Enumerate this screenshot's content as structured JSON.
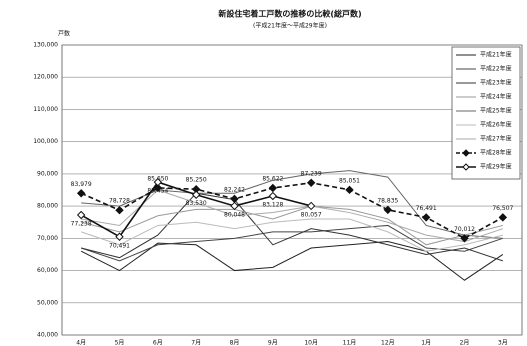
{
  "chart_data": {
    "type": "line",
    "title": "新設住宅着工戸数の推移の比較(総戸数)",
    "subtitle": "(平成21年度～平成29年度)",
    "y_label": "戸数",
    "categories": [
      "4月",
      "5月",
      "6月",
      "7月",
      "8月",
      "9月",
      "10月",
      "11月",
      "12月",
      "1月",
      "2月",
      "3月"
    ],
    "ylim": [
      40000,
      130000
    ],
    "yticks": [
      {
        "value": 40000,
        "label": "40,000"
      },
      {
        "value": 50000,
        "label": "50,000"
      },
      {
        "value": 60000,
        "label": "60,000"
      },
      {
        "value": 70000,
        "label": "70,000"
      },
      {
        "value": 80000,
        "label": "80,000"
      },
      {
        "value": 90000,
        "label": "90,000"
      },
      {
        "value": 100000,
        "label": "100,000"
      },
      {
        "value": 110000,
        "label": "110,000"
      },
      {
        "value": 120000,
        "label": "120,000"
      },
      {
        "value": 130000,
        "label": "130,000"
      }
    ],
    "grid": true,
    "legend": "upper right",
    "series": [
      {
        "name": "平成21年度",
        "color": "#222222",
        "values": [
          66000,
          60000,
          68500,
          68000,
          60000,
          61000,
          67000,
          68000,
          69000,
          66000,
          57000,
          65000
        ]
      },
      {
        "name": "平成22年度",
        "color": "#444444",
        "values": [
          67000,
          63000,
          68000,
          69000,
          70000,
          72000,
          72000,
          73000,
          74000,
          67000,
          66000,
          70000
        ]
      },
      {
        "name": "平成23年度",
        "color": "#333333",
        "values": [
          67000,
          64000,
          71000,
          84000,
          82000,
          68000,
          73000,
          71000,
          68000,
          65000,
          67000,
          63000
        ]
      },
      {
        "name": "平成24年度",
        "color": "#999999",
        "values": [
          75000,
          72000,
          77000,
          79000,
          79000,
          76000,
          80000,
          79000,
          76000,
          68000,
          71000,
          74000
        ]
      },
      {
        "name": "平成25年度",
        "color": "#666666",
        "values": [
          81000,
          80000,
          85000,
          84000,
          84000,
          88000,
          90000,
          91000,
          89000,
          74000,
          71000,
          70000
        ]
      },
      {
        "name": "平成26年度",
        "color": "#bbbbbb",
        "values": [
          72000,
          68000,
          74000,
          75000,
          73000,
          75000,
          76000,
          76000,
          72000,
          66000,
          68000,
          71000
        ]
      },
      {
        "name": "平成27年度",
        "color": "#aaaaaa",
        "values": [
          76000,
          74000,
          85000,
          81000,
          77000,
          78000,
          80000,
          78000,
          75000,
          71000,
          69000,
          73000
        ]
      },
      {
        "name": "平成28年度",
        "color": "#111111",
        "dash": true,
        "marker": "filled",
        "values": [
          83979,
          78728,
          85650,
          85250,
          82242,
          85622,
          87239,
          85051,
          78835,
          76491,
          70012,
          76507
        ],
        "value_labels": [
          "83,979",
          "78,728",
          "85,650",
          "85,250",
          "82,242",
          "85,622",
          "87,239",
          "85,051",
          "78,835",
          "76,491",
          "70,012",
          "76,507"
        ]
      },
      {
        "name": "平成29年度",
        "color": "#111111",
        "marker": "open",
        "values": [
          77238,
          70491,
          87454,
          83530,
          80048,
          83128,
          80057,
          null,
          null,
          null,
          null,
          null
        ],
        "value_labels": [
          "77,238",
          "70,491",
          "87,454",
          "83,530",
          "80,048",
          "83,128",
          "80,057",
          null,
          null,
          null,
          null,
          null
        ]
      }
    ]
  }
}
